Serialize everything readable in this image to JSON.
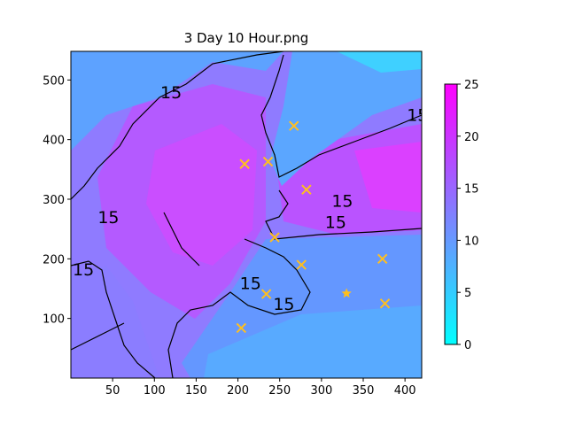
{
  "chart_data": {
    "type": "heatmap",
    "title": "3 Day 10 Hour.png",
    "xlabel": "",
    "ylabel": "",
    "xlim": [
      0,
      420
    ],
    "ylim": [
      0,
      548
    ],
    "xticks": [
      50,
      100,
      150,
      200,
      250,
      300,
      350,
      400
    ],
    "yticks": [
      100,
      200,
      300,
      400,
      500
    ],
    "colorbar": {
      "min": 0,
      "max": 25,
      "ticks": [
        0,
        5,
        10,
        15,
        20,
        25
      ],
      "colors": [
        "#00ffff",
        "#40bfff",
        "#8080ff",
        "#bf40ff",
        "#ff00ff"
      ]
    },
    "contour_level": 15,
    "contour_labels": [
      {
        "x": 120,
        "y": 480
      },
      {
        "x": 415,
        "y": 442
      },
      {
        "x": 45,
        "y": 270
      },
      {
        "x": 325,
        "y": 298
      },
      {
        "x": 317,
        "y": 262
      },
      {
        "x": 15,
        "y": 183
      },
      {
        "x": 215,
        "y": 160
      },
      {
        "x": 255,
        "y": 125
      }
    ],
    "markers": {
      "x_markers": [
        {
          "x": 267,
          "y": 423
        },
        {
          "x": 208,
          "y": 359
        },
        {
          "x": 236,
          "y": 363
        },
        {
          "x": 282,
          "y": 316
        },
        {
          "x": 244,
          "y": 236
        },
        {
          "x": 276,
          "y": 190
        },
        {
          "x": 373,
          "y": 200
        },
        {
          "x": 234,
          "y": 141
        },
        {
          "x": 376,
          "y": 125
        },
        {
          "x": 204,
          "y": 84
        }
      ],
      "star_markers": [
        {
          "x": 330,
          "y": 142
        }
      ],
      "color": "#ffbf1f"
    }
  }
}
